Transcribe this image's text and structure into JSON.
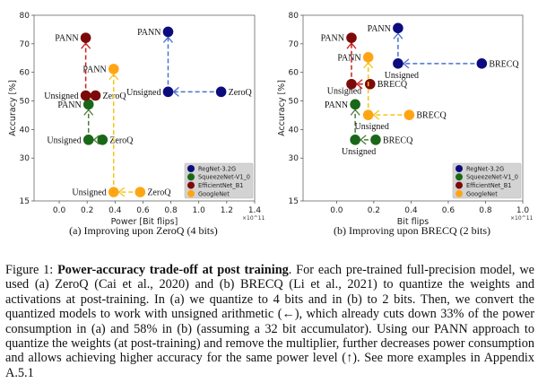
{
  "chart_data": [
    {
      "type": "scatter",
      "subcaption": "(a) Improving upon ZeroQ (4 bits)",
      "xlabel": "Power [Bit flips]",
      "x_multiplier": "×10^11",
      "ylabel": "Accuracy [%]",
      "xlim": [
        -0.18,
        1.4
      ],
      "ylim": [
        15,
        80
      ],
      "xticks": [
        "0.0",
        "0.2",
        "0.4",
        "0.6",
        "0.8",
        "1.0",
        "1.2",
        "1.4"
      ],
      "yticks": [
        "15",
        "30",
        "40",
        "50",
        "60",
        "70",
        "80"
      ],
      "grid": false,
      "legend_position": "bottom-right",
      "series": [
        {
          "name": "RegNet-3.2G",
          "color": "#0c0c7e",
          "arrow_color": "#4a72d0",
          "points": [
            {
              "label": "ZeroQ",
              "x": 1.16,
              "y": 53.2
            },
            {
              "label": "Unsigned",
              "x": 0.78,
              "y": 53.2
            },
            {
              "label": "PANN",
              "x": 0.78,
              "y": 74.2
            }
          ]
        },
        {
          "name": "SqueezeNet-V1_0",
          "color": "#186818",
          "arrow_color": "#4d7a3a",
          "points": [
            {
              "label": "ZeroQ",
              "x": 0.31,
              "y": 36.4
            },
            {
              "label": "Unsigned",
              "x": 0.21,
              "y": 36.4
            },
            {
              "label": "PANN",
              "x": 0.21,
              "y": 48.8
            }
          ]
        },
        {
          "name": "EfficientNet_B1",
          "color": "#7d0a0a",
          "arrow_color": "#c8201e",
          "points": [
            {
              "label": "ZeroQ",
              "x": 0.26,
              "y": 51.9
            },
            {
              "label": "Unsigned",
              "x": 0.19,
              "y": 51.9
            },
            {
              "label": "PANN",
              "x": 0.19,
              "y": 72.1
            }
          ]
        },
        {
          "name": "GoogleNet",
          "color": "#ffa514",
          "arrow_color": "#f5c518",
          "points": [
            {
              "label": "ZeroQ",
              "x": 0.58,
              "y": 18.1
            },
            {
              "label": "Unsigned",
              "x": 0.39,
              "y": 18.1
            },
            {
              "label": "PANN",
              "x": 0.39,
              "y": 61.2
            }
          ]
        }
      ]
    },
    {
      "type": "scatter",
      "subcaption": "(b) Improving upon BRECQ (2 bits)",
      "xlabel": "Bit flips",
      "x_multiplier": "×10^11",
      "ylabel": "Accuracy [%]",
      "xlim": [
        -0.18,
        1.0
      ],
      "ylim": [
        15,
        80
      ],
      "xticks": [
        "0.0",
        "0.2",
        "0.4",
        "0.6",
        "0.8",
        "1.0"
      ],
      "yticks": [
        "15",
        "30",
        "40",
        "50",
        "60",
        "70",
        "80"
      ],
      "grid": false,
      "legend_position": "bottom-right",
      "series": [
        {
          "name": "RegNet-3.2G",
          "color": "#0c0c7e",
          "arrow_color": "#4a72d0",
          "points": [
            {
              "label": "BRECQ",
              "x": 0.78,
              "y": 63.1
            },
            {
              "label": "Unsigned",
              "x": 0.33,
              "y": 63.1
            },
            {
              "label": "PANN",
              "x": 0.33,
              "y": 75.5
            }
          ]
        },
        {
          "name": "SqueezeNet-V1_0",
          "color": "#186818",
          "arrow_color": "#4d7a3a",
          "points": [
            {
              "label": "BRECQ",
              "x": 0.21,
              "y": 36.4
            },
            {
              "label": "Unsigned",
              "x": 0.1,
              "y": 36.4
            },
            {
              "label": "PANN",
              "x": 0.1,
              "y": 48.8
            }
          ]
        },
        {
          "name": "EfficientNet_B1",
          "color": "#7d0a0a",
          "arrow_color": "#c8201e",
          "points": [
            {
              "label": "BRECQ",
              "x": 0.18,
              "y": 55.9
            },
            {
              "label": "Unsigned",
              "x": 0.08,
              "y": 55.9
            },
            {
              "label": "PANN",
              "x": 0.08,
              "y": 72.1
            }
          ]
        },
        {
          "name": "GoogleNet",
          "color": "#ffa514",
          "arrow_color": "#f5c518",
          "points": [
            {
              "label": "BRECQ",
              "x": 0.39,
              "y": 45.1
            },
            {
              "label": "Unsigned",
              "x": 0.17,
              "y": 45.1
            },
            {
              "label": "PANN",
              "x": 0.17,
              "y": 65.3
            }
          ]
        }
      ]
    }
  ],
  "caption": {
    "label": "Figure 1: ",
    "title": "Power-accuracy trade-off at post training",
    "body": ". For each pre-trained full-precision model, we used (a) ZeroQ (Cai et al., 2020) and (b) BRECQ (Li et al., 2021) to quantize the weights and activations at post-training. In (a) we quantize to 4 bits and in (b) to 2 bits. Then, we convert the quantized models to work with unsigned arithmetic (←), which already cuts down 33% of the power consumption in (a) and 58% in (b) (assuming a 32 bit accumulator). Using our PANN approach to quantize the weights (at post-training) and remove the multiplier, further decreases power consumption and allows achieving higher accuracy for the same power level (↑). See more examples in Appendix A.5.1"
  }
}
